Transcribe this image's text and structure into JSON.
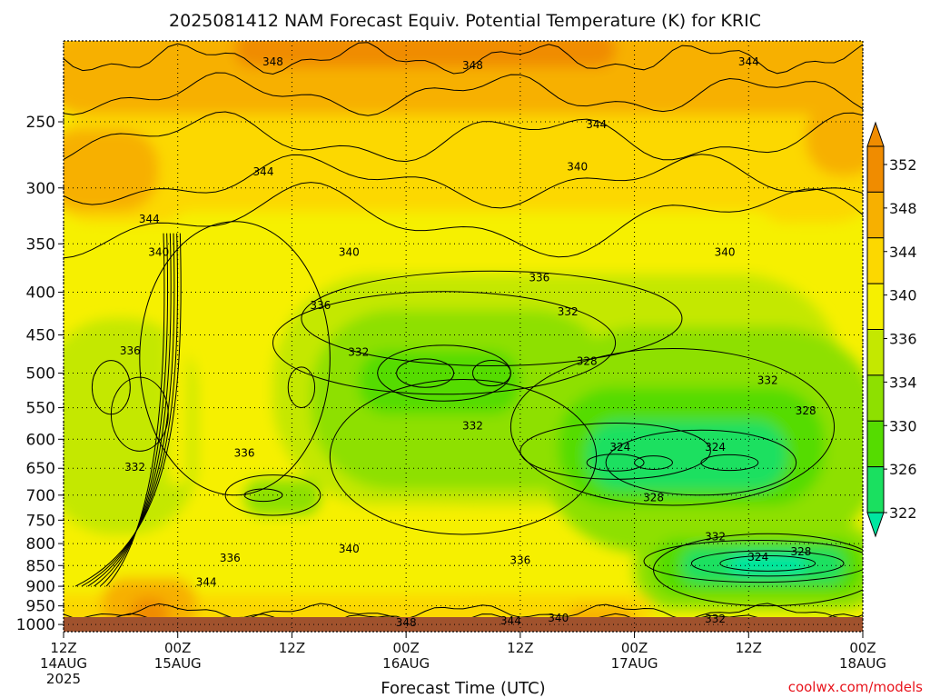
{
  "chart_data": {
    "type": "heatmap",
    "title": "2025081412 NAM Forecast Equiv. Potential Temperature (K) for KRIC",
    "xlabel": "Forecast Time (UTC)",
    "credit": "coolwx.com/models",
    "x_ticks": [
      {
        "hour": 0,
        "lines": [
          "12Z",
          "14AUG",
          "2025"
        ]
      },
      {
        "hour": 12,
        "lines": [
          "00Z",
          "15AUG"
        ]
      },
      {
        "hour": 24,
        "lines": [
          "12Z"
        ]
      },
      {
        "hour": 36,
        "lines": [
          "00Z",
          "16AUG"
        ]
      },
      {
        "hour": 48,
        "lines": [
          "12Z"
        ]
      },
      {
        "hour": 60,
        "lines": [
          "00Z",
          "17AUG"
        ]
      },
      {
        "hour": 72,
        "lines": [
          "12Z"
        ]
      },
      {
        "hour": 84,
        "lines": [
          "00Z",
          "18AUG"
        ]
      }
    ],
    "x_range": [
      0,
      84
    ],
    "y_ticks": [
      250,
      300,
      350,
      400,
      450,
      500,
      550,
      600,
      650,
      700,
      750,
      800,
      850,
      900,
      950,
      1000
    ],
    "y_range_hpa": [
      200,
      1020
    ],
    "y_scale": "log-pressure",
    "grid": "dotted",
    "colorbar": {
      "ticks": [
        352,
        348,
        344,
        340,
        336,
        334,
        330,
        326,
        322
      ],
      "stops": [
        {
          "k": 352,
          "color": "#f08c00"
        },
        {
          "k": 348,
          "color": "#f7b000"
        },
        {
          "k": 344,
          "color": "#fcd800"
        },
        {
          "k": 340,
          "color": "#f6f000"
        },
        {
          "k": 336,
          "color": "#c4e800"
        },
        {
          "k": 334,
          "color": "#8ee000"
        },
        {
          "k": 330,
          "color": "#55dc00"
        },
        {
          "k": 326,
          "color": "#1ae060"
        },
        {
          "k": 322,
          "color": "#00e6a0"
        }
      ]
    },
    "ground_color": "#a0522d",
    "contour_labels": [
      {
        "text": "348",
        "hour": 22,
        "p": 212
      },
      {
        "text": "348",
        "hour": 43,
        "p": 214
      },
      {
        "text": "344",
        "hour": 72,
        "p": 212
      },
      {
        "text": "344",
        "hour": 56,
        "p": 252
      },
      {
        "text": "344",
        "hour": 21,
        "p": 287
      },
      {
        "text": "340",
        "hour": 54,
        "p": 283
      },
      {
        "text": "344",
        "hour": 9,
        "p": 327
      },
      {
        "text": "340",
        "hour": 10,
        "p": 358
      },
      {
        "text": "340",
        "hour": 30,
        "p": 358
      },
      {
        "text": "340",
        "hour": 69.5,
        "p": 358
      },
      {
        "text": "336",
        "hour": 50,
        "p": 384
      },
      {
        "text": "336",
        "hour": 27,
        "p": 415
      },
      {
        "text": "332",
        "hour": 53,
        "p": 422
      },
      {
        "text": "336",
        "hour": 7,
        "p": 470
      },
      {
        "text": "332",
        "hour": 31,
        "p": 472
      },
      {
        "text": "328",
        "hour": 55,
        "p": 484
      },
      {
        "text": "332",
        "hour": 74,
        "p": 510
      },
      {
        "text": "328",
        "hour": 78,
        "p": 555
      },
      {
        "text": "332",
        "hour": 43,
        "p": 578
      },
      {
        "text": "324",
        "hour": 58.5,
        "p": 613
      },
      {
        "text": "324",
        "hour": 68.5,
        "p": 613
      },
      {
        "text": "336",
        "hour": 19,
        "p": 623
      },
      {
        "text": "332",
        "hour": 7.5,
        "p": 648
      },
      {
        "text": "328",
        "hour": 62,
        "p": 705
      },
      {
        "text": "332",
        "hour": 68.5,
        "p": 785
      },
      {
        "text": "340",
        "hour": 30,
        "p": 812
      },
      {
        "text": "324",
        "hour": 73,
        "p": 830
      },
      {
        "text": "328",
        "hour": 77.5,
        "p": 818
      },
      {
        "text": "336",
        "hour": 17.5,
        "p": 833
      },
      {
        "text": "336",
        "hour": 48,
        "p": 838
      },
      {
        "text": "344",
        "hour": 15,
        "p": 890
      },
      {
        "text": "332",
        "hour": 68.5,
        "p": 985
      },
      {
        "text": "348",
        "hour": 36,
        "p": 995
      },
      {
        "text": "344",
        "hour": 47,
        "p": 990
      },
      {
        "text": "340",
        "hour": 52,
        "p": 982
      }
    ]
  }
}
